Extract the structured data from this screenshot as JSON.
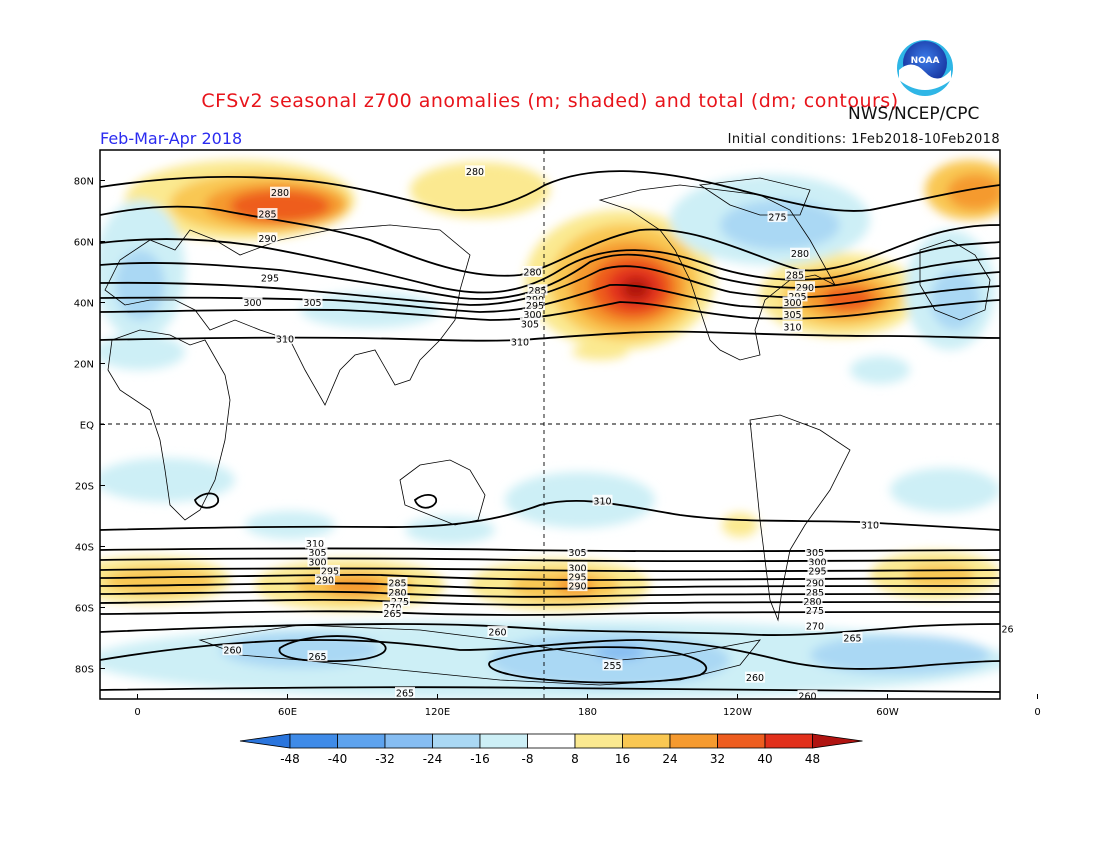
{
  "title": "CFSv2 seasonal z700 anomalies (m; shaded) and total (dm; contours)",
  "agency": "NWS/NCEP/CPC",
  "logo_text": "NOAA",
  "period": "Feb-Mar-Apr 2018",
  "initial_conditions": "Initial conditions: 1Feb2018-10Feb2018",
  "lat_labels": [
    "80N",
    "60N",
    "40N",
    "20N",
    "EQ",
    "20S",
    "40S",
    "60S",
    "80S"
  ],
  "lon_labels": [
    "0",
    "60E",
    "120E",
    "180",
    "120W",
    "60W",
    "0"
  ],
  "colorbar": {
    "ticks": [
      "-48",
      "-40",
      "-32",
      "-24",
      "-16",
      "-8",
      "8",
      "16",
      "24",
      "32",
      "40",
      "48"
    ],
    "colors": [
      "#2a75dd",
      "#3f8be8",
      "#5ea3ee",
      "#86bdf2",
      "#aad8f4",
      "#cdeff6",
      "#ffffff",
      "#fbe990",
      "#f9c752",
      "#f59a2f",
      "#ee5d1f",
      "#e2301b",
      "#b01411"
    ]
  },
  "contour_labels": [
    {
      "text": "280",
      "lon": 57,
      "lat": 76
    },
    {
      "text": "285",
      "lon": 52,
      "lat": 69
    },
    {
      "text": "290",
      "lon": 52,
      "lat": 61
    },
    {
      "text": "295",
      "lon": 53,
      "lat": 48
    },
    {
      "text": "300",
      "lon": 46,
      "lat": 40
    },
    {
      "text": "305",
      "lon": 70,
      "lat": 40
    },
    {
      "text": "310",
      "lon": 59,
      "lat": 28
    },
    {
      "text": "280",
      "lon": 135,
      "lat": 83
    },
    {
      "text": "280",
      "lon": 158,
      "lat": 50
    },
    {
      "text": "285",
      "lon": 160,
      "lat": 44
    },
    {
      "text": "290",
      "lon": 159,
      "lat": 41
    },
    {
      "text": "295",
      "lon": 159,
      "lat": 39
    },
    {
      "text": "300",
      "lon": 158,
      "lat": 36
    },
    {
      "text": "305",
      "lon": 157,
      "lat": 33
    },
    {
      "text": "310",
      "lon": 153,
      "lat": 27
    },
    {
      "text": "275",
      "lon": 256,
      "lat": 68
    },
    {
      "text": "280",
      "lon": 265,
      "lat": 56
    },
    {
      "text": "285",
      "lon": 263,
      "lat": 49
    },
    {
      "text": "290",
      "lon": 267,
      "lat": 45
    },
    {
      "text": "295",
      "lon": 264,
      "lat": 42
    },
    {
      "text": "300",
      "lon": 262,
      "lat": 40
    },
    {
      "text": "305",
      "lon": 262,
      "lat": 36
    },
    {
      "text": "310",
      "lon": 262,
      "lat": 32
    },
    {
      "text": "310",
      "lon": 186,
      "lat": -25
    },
    {
      "text": "310",
      "lon": 293,
      "lat": -33
    },
    {
      "text": "310",
      "lon": 71,
      "lat": -39
    },
    {
      "text": "305",
      "lon": 72,
      "lat": -42
    },
    {
      "text": "300",
      "lon": 72,
      "lat": -45
    },
    {
      "text": "295",
      "lon": 77,
      "lat": -48
    },
    {
      "text": "290",
      "lon": 75,
      "lat": -51
    },
    {
      "text": "285",
      "lon": 104,
      "lat": -52
    },
    {
      "text": "280",
      "lon": 104,
      "lat": -55
    },
    {
      "text": "275",
      "lon": 105,
      "lat": -58
    },
    {
      "text": "270",
      "lon": 102,
      "lat": -60
    },
    {
      "text": "265",
      "lon": 102,
      "lat": -62
    },
    {
      "text": "305",
      "lon": 176,
      "lat": -42
    },
    {
      "text": "300",
      "lon": 176,
      "lat": -47
    },
    {
      "text": "295",
      "lon": 176,
      "lat": -50
    },
    {
      "text": "290",
      "lon": 176,
      "lat": -53
    },
    {
      "text": "305",
      "lon": 271,
      "lat": -42
    },
    {
      "text": "300",
      "lon": 272,
      "lat": -45
    },
    {
      "text": "295",
      "lon": 272,
      "lat": -48
    },
    {
      "text": "290",
      "lon": 271,
      "lat": -52
    },
    {
      "text": "285",
      "lon": 271,
      "lat": -55
    },
    {
      "text": "280",
      "lon": 270,
      "lat": -58
    },
    {
      "text": "275",
      "lon": 271,
      "lat": -61
    },
    {
      "text": "270",
      "lon": 271,
      "lat": -66
    },
    {
      "text": "265",
      "lon": 286,
      "lat": -70
    },
    {
      "text": "260",
      "lon": 144,
      "lat": -68
    },
    {
      "text": "260",
      "lon": 38,
      "lat": -74
    },
    {
      "text": "265",
      "lon": 72,
      "lat": -76
    },
    {
      "text": "255",
      "lon": 190,
      "lat": -79
    },
    {
      "text": "260",
      "lon": 247,
      "lat": -83
    },
    {
      "text": "260",
      "lon": 268,
      "lat": -89
    },
    {
      "text": "265",
      "lon": 107,
      "lat": -88
    },
    {
      "text": "26",
      "lon": 348,
      "lat": -67
    }
  ]
}
